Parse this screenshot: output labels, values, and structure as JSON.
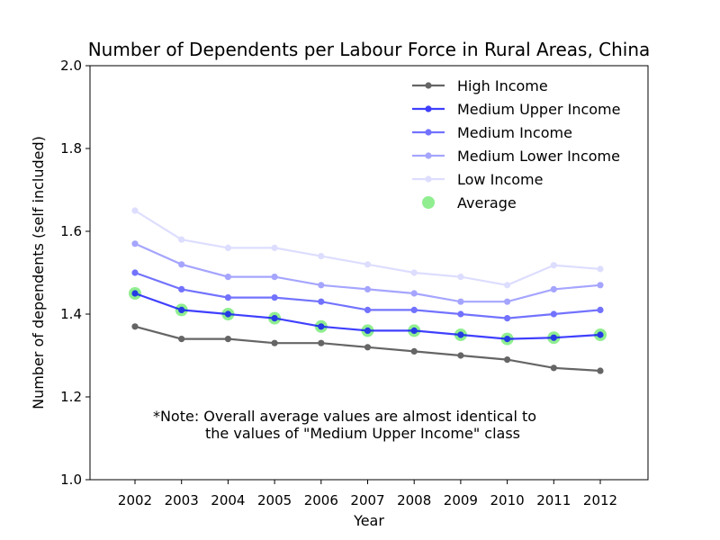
{
  "chart_data": {
    "type": "line",
    "title": "Number of Dependents per Labour Force in Rural Areas, China",
    "xlabel": "Year",
    "ylabel": "Number of dependents (self included)",
    "ylim": [
      1.0,
      2.0
    ],
    "yticks": [
      "1.0",
      "1.2",
      "1.4",
      "1.6",
      "1.8",
      "2.0"
    ],
    "categories": [
      "2002",
      "2003",
      "2004",
      "2005",
      "2006",
      "2007",
      "2008",
      "2009",
      "2010",
      "2011",
      "2012"
    ],
    "legend_position": "top-right",
    "grid": false,
    "series": [
      {
        "name": "High Income",
        "color": "#000000",
        "opacity": 0.6,
        "values": [
          1.37,
          1.34,
          1.34,
          1.33,
          1.33,
          1.32,
          1.31,
          1.3,
          1.29,
          1.27,
          1.263
        ]
      },
      {
        "name": "Medium Upper Income",
        "color": "#0000ff",
        "opacity": 0.75,
        "values": [
          1.45,
          1.41,
          1.4,
          1.39,
          1.37,
          1.36,
          1.36,
          1.35,
          1.34,
          1.343,
          1.35
        ]
      },
      {
        "name": "Medium Income",
        "color": "#0000ff",
        "opacity": 0.55,
        "values": [
          1.5,
          1.46,
          1.44,
          1.44,
          1.43,
          1.41,
          1.41,
          1.4,
          1.39,
          1.4,
          1.41
        ]
      },
      {
        "name": "Medium Lower Income",
        "color": "#0000ff",
        "opacity": 0.35,
        "values": [
          1.57,
          1.52,
          1.49,
          1.49,
          1.47,
          1.46,
          1.45,
          1.43,
          1.43,
          1.46,
          1.47
        ]
      },
      {
        "name": "Low Income",
        "color": "#0000ff",
        "opacity": 0.13,
        "values": [
          1.65,
          1.58,
          1.56,
          1.56,
          1.54,
          1.52,
          1.5,
          1.49,
          1.47,
          1.518,
          1.509
        ]
      }
    ],
    "average": {
      "name": "Average",
      "color": "#90ee90",
      "values": [
        1.45,
        1.41,
        1.4,
        1.39,
        1.37,
        1.36,
        1.36,
        1.35,
        1.34,
        1.343,
        1.35
      ]
    },
    "annotation": [
      "*Note: Overall average values are almost identical to",
      "the values of \"Medium Upper Income\" class"
    ]
  }
}
